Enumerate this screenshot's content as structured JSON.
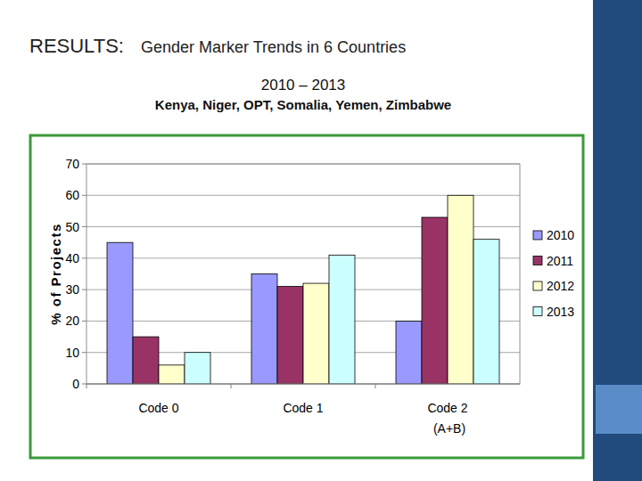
{
  "chart_data": {
    "type": "bar",
    "title": "Gender Marker Trends in 6 Countries",
    "subtitle": "2010 – 2013",
    "annotations": [
      "RESULTS:",
      "Kenya, Niger, OPT, Somalia, Yemen, Zimbabwe"
    ],
    "y_label": "% of Projects",
    "categories": [
      "Code 0",
      "Code 1",
      "Code 2\n(A+B)"
    ],
    "series": [
      {
        "name": "2010",
        "color": "#9999ff",
        "values": [
          45,
          35,
          20
        ]
      },
      {
        "name": "2011",
        "color": "#993366",
        "values": [
          15,
          31,
          53
        ]
      },
      {
        "name": "2012",
        "color": "#ffffcc",
        "values": [
          6,
          32,
          60
        ]
      },
      {
        "name": "2013",
        "color": "#ccffff",
        "values": [
          10,
          41,
          46
        ]
      }
    ],
    "ylim": [
      0,
      70
    ],
    "yticks": [
      0,
      10,
      20,
      30,
      40,
      50,
      60,
      70
    ],
    "grid": true,
    "legend": "right"
  }
}
